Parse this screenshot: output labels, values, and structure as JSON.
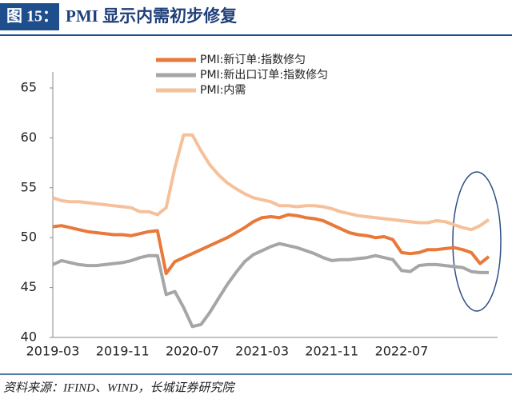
{
  "chart_data": {
    "type": "line",
    "figure_label": "图 15：",
    "title": "PMI 显示内需初步修复",
    "source": "资料来源：IFIND、WIND，长城证券研究院",
    "categories": [
      "2019-03",
      null,
      null,
      null,
      null,
      null,
      null,
      null,
      "2019-11",
      null,
      null,
      null,
      null,
      null,
      null,
      null,
      "2020-07",
      null,
      null,
      null,
      null,
      null,
      null,
      null,
      "2021-03",
      null,
      null,
      null,
      null,
      null,
      null,
      null,
      "2021-11",
      null,
      null,
      null,
      null,
      null,
      null,
      null,
      "2022-07",
      null,
      null,
      null,
      null,
      null,
      null,
      null,
      null,
      null,
      null
    ],
    "series": [
      {
        "name": "PMI:新订单:指数修匀",
        "color": "#e8793a",
        "values": [
          51.1,
          51.2,
          51.0,
          50.8,
          50.6,
          50.5,
          50.4,
          50.3,
          50.3,
          50.2,
          50.4,
          50.6,
          50.7,
          46.4,
          47.6,
          48.0,
          48.4,
          48.8,
          49.2,
          49.6,
          50.0,
          50.5,
          51.0,
          51.6,
          52.0,
          52.1,
          52.0,
          52.3,
          52.2,
          52.0,
          51.9,
          51.7,
          51.3,
          50.9,
          50.5,
          50.3,
          50.2,
          50.0,
          50.1,
          49.8,
          48.5,
          48.4,
          48.5,
          48.8,
          48.8,
          48.9,
          49.0,
          48.8,
          48.5,
          47.4,
          48.1
        ]
      },
      {
        "name": "PMI:新出口订单:指数修匀",
        "color": "#a6a6a6",
        "values": [
          47.3,
          47.7,
          47.5,
          47.3,
          47.2,
          47.2,
          47.3,
          47.4,
          47.5,
          47.7,
          48.0,
          48.2,
          48.2,
          44.3,
          44.6,
          43.0,
          41.1,
          41.3,
          42.5,
          43.9,
          45.3,
          46.5,
          47.6,
          48.3,
          48.7,
          49.1,
          49.4,
          49.2,
          49.0,
          48.7,
          48.4,
          48.0,
          47.7,
          47.8,
          47.8,
          47.9,
          48.0,
          48.2,
          48.0,
          47.8,
          46.7,
          46.6,
          47.2,
          47.3,
          47.3,
          47.2,
          47.1,
          47.0,
          46.6,
          46.5,
          46.5
        ]
      },
      {
        "name": "PMI:内需",
        "color": "#f6c09a",
        "values": [
          54.0,
          53.7,
          53.6,
          53.6,
          53.5,
          53.4,
          53.3,
          53.2,
          53.1,
          53.0,
          52.6,
          52.6,
          52.3,
          53.0,
          57.0,
          60.3,
          60.3,
          58.7,
          57.3,
          56.3,
          55.5,
          54.9,
          54.4,
          54.0,
          53.8,
          53.6,
          53.2,
          53.2,
          53.1,
          53.2,
          53.2,
          53.1,
          52.9,
          52.6,
          52.4,
          52.2,
          52.1,
          52.0,
          51.9,
          51.8,
          51.7,
          51.6,
          51.5,
          51.5,
          51.7,
          51.6,
          51.3,
          51.0,
          50.8,
          51.2,
          51.8
        ]
      }
    ],
    "ylim": [
      40,
      65
    ],
    "yticks": [
      40,
      45,
      50,
      55,
      60,
      65
    ],
    "grid": false,
    "legend": "top"
  }
}
